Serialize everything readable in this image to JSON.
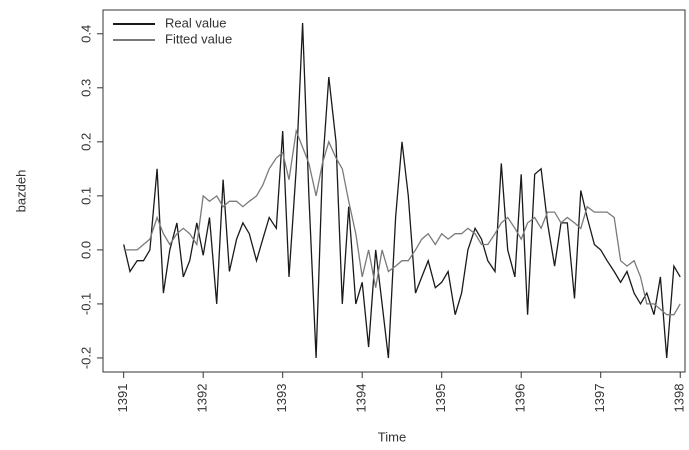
{
  "chart_data": {
    "type": "line",
    "x_label": "Time",
    "y_label": "bazdeh",
    "x": [
      1391.0,
      1391.08,
      1391.17,
      1391.25,
      1391.33,
      1391.42,
      1391.5,
      1391.58,
      1391.67,
      1391.75,
      1391.83,
      1391.92,
      1392.0,
      1392.08,
      1392.17,
      1392.25,
      1392.33,
      1392.42,
      1392.5,
      1392.58,
      1392.67,
      1392.75,
      1392.83,
      1392.92,
      1393.0,
      1393.08,
      1393.17,
      1393.25,
      1393.33,
      1393.42,
      1393.5,
      1393.58,
      1393.67,
      1393.75,
      1393.83,
      1393.92,
      1394.0,
      1394.08,
      1394.17,
      1394.25,
      1394.33,
      1394.42,
      1394.5,
      1394.58,
      1394.67,
      1394.75,
      1394.83,
      1394.92,
      1395.0,
      1395.08,
      1395.17,
      1395.25,
      1395.33,
      1395.42,
      1395.5,
      1395.58,
      1395.67,
      1395.75,
      1395.83,
      1395.92,
      1396.0,
      1396.08,
      1396.17,
      1396.25,
      1396.33,
      1396.42,
      1396.5,
      1396.58,
      1396.67,
      1396.75,
      1396.83,
      1396.92,
      1397.0,
      1397.08,
      1397.17,
      1397.25,
      1397.33,
      1397.42,
      1397.5,
      1397.58,
      1397.67,
      1397.75,
      1397.83,
      1397.92,
      1398.0
    ],
    "series": [
      {
        "name": "Real value",
        "color": "#1a1a1a",
        "values": [
          0.01,
          -0.04,
          -0.02,
          -0.02,
          0.0,
          0.15,
          -0.08,
          0.0,
          0.05,
          -0.05,
          -0.02,
          0.05,
          -0.01,
          0.06,
          -0.1,
          0.13,
          -0.04,
          0.02,
          0.05,
          0.03,
          -0.02,
          0.02,
          0.06,
          0.04,
          0.22,
          -0.05,
          0.15,
          0.42,
          0.1,
          -0.2,
          0.15,
          0.32,
          0.2,
          -0.1,
          0.08,
          -0.1,
          -0.06,
          -0.18,
          0.0,
          -0.1,
          -0.2,
          0.06,
          0.2,
          0.1,
          -0.08,
          -0.05,
          -0.02,
          -0.07,
          -0.06,
          -0.04,
          -0.12,
          -0.08,
          0.0,
          0.04,
          0.02,
          -0.02,
          -0.04,
          0.16,
          0.0,
          -0.05,
          0.14,
          -0.12,
          0.14,
          0.15,
          0.05,
          -0.03,
          0.05,
          0.05,
          -0.09,
          0.11,
          0.06,
          0.01,
          0.0,
          -0.02,
          -0.04,
          -0.06,
          -0.04,
          -0.08,
          -0.1,
          -0.08,
          -0.12,
          -0.05,
          -0.2,
          -0.03,
          -0.05
        ]
      },
      {
        "name": "Fitted value",
        "color": "#7a7a7a",
        "values": [
          0.0,
          0.0,
          0.0,
          0.01,
          0.02,
          0.06,
          0.03,
          0.01,
          0.03,
          0.04,
          0.03,
          0.01,
          0.1,
          0.09,
          0.1,
          0.08,
          0.09,
          0.09,
          0.08,
          0.09,
          0.1,
          0.12,
          0.15,
          0.17,
          0.18,
          0.13,
          0.22,
          0.19,
          0.16,
          0.1,
          0.16,
          0.2,
          0.17,
          0.15,
          0.09,
          0.03,
          -0.05,
          0.0,
          -0.07,
          0.0,
          -0.04,
          -0.03,
          -0.02,
          -0.02,
          0.0,
          0.02,
          0.03,
          0.01,
          0.03,
          0.02,
          0.03,
          0.03,
          0.04,
          0.03,
          0.01,
          0.01,
          0.03,
          0.05,
          0.06,
          0.04,
          0.02,
          0.05,
          0.06,
          0.04,
          0.07,
          0.07,
          0.05,
          0.06,
          0.05,
          0.04,
          0.08,
          0.07,
          0.07,
          0.07,
          0.06,
          -0.02,
          -0.03,
          -0.02,
          -0.05,
          -0.1,
          -0.1,
          -0.11,
          -0.12,
          -0.12,
          -0.1
        ]
      }
    ],
    "xlim": [
      1390.74,
      1398.06
    ],
    "xticks": [
      1391,
      1392,
      1393,
      1394,
      1395,
      1396,
      1397,
      1398
    ],
    "ylim": [
      -0.226,
      0.444
    ],
    "yticks": [
      -0.2,
      -0.1,
      {
        "value": 0,
        "label": "0.0"
      },
      0.1,
      0.2,
      0.3,
      0.4
    ],
    "legend": "top-left"
  }
}
